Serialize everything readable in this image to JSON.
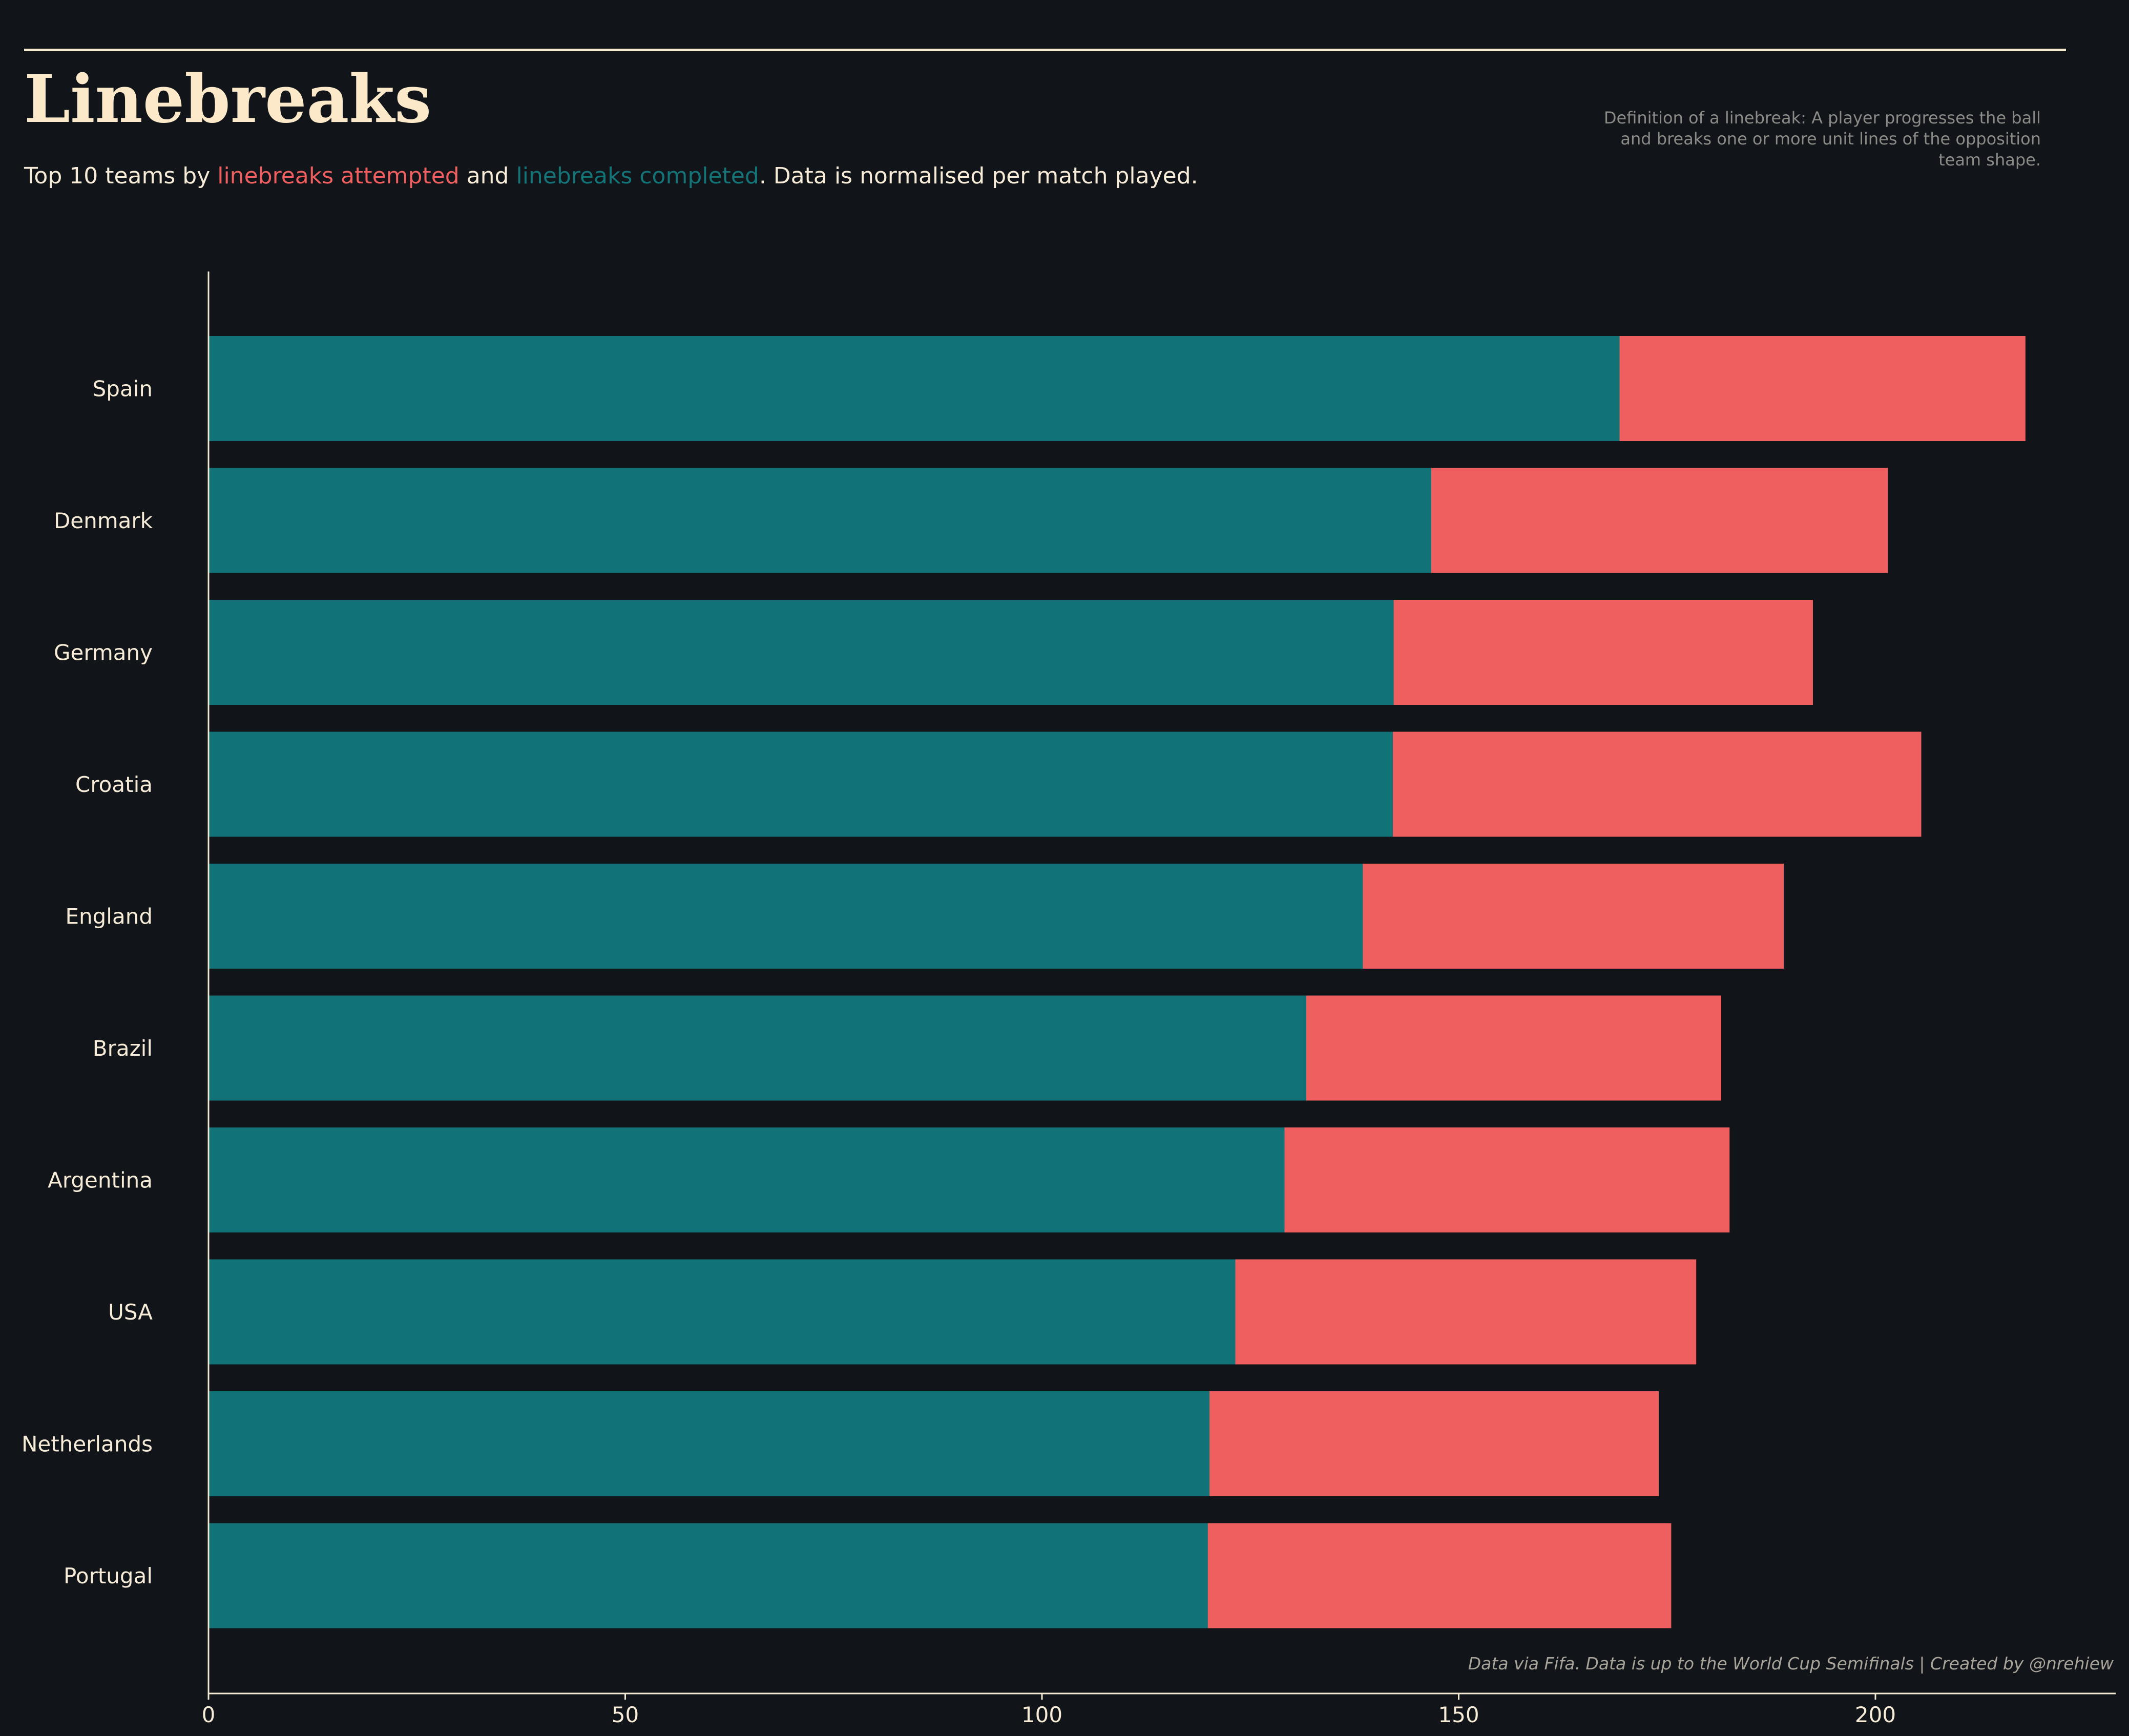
{
  "title": "Linebreaks",
  "subtitle": {
    "prefix": "Top 10 teams by ",
    "attempted": "linebreaks attempted",
    "middle": " and ",
    "completed": "linebreaks completed",
    "suffix": ". Data is normalised per match played."
  },
  "definition": "Definition of a linebreak: A player progresses the ball and breaks one or more unit lines of the opposition team shape.",
  "credit": "Data via Fifa. Data is up to the World Cup Semifinals  |  Created by @nrehiew",
  "colors": {
    "background": "#111419",
    "attempted": "#ef5f60",
    "completed": "#117377",
    "text": "#f6ecd8",
    "title": "#fbe9c9"
  },
  "chart_data": {
    "type": "bar",
    "orientation": "horizontal",
    "stacked": "overlay",
    "categories": [
      "Spain",
      "Denmark",
      "Germany",
      "Croatia",
      "England",
      "Brazil",
      "Argentina",
      "USA",
      "Netherlands",
      "Portugal"
    ],
    "series": [
      {
        "name": "linebreaks attempted",
        "values": [
          218,
          201.5,
          192.5,
          205.5,
          189,
          181.5,
          182.5,
          178.5,
          174,
          175.5
        ]
      },
      {
        "name": "linebreaks completed",
        "values": [
          169.3,
          146.7,
          142.2,
          142.1,
          138.5,
          131.7,
          129.1,
          123.2,
          120.1,
          119.9
        ]
      }
    ],
    "xticks": [
      0,
      50,
      100,
      150,
      200
    ],
    "xlim": [
      0,
      230
    ],
    "xlabel": "",
    "ylabel": "",
    "grid": false,
    "legend": "none"
  }
}
